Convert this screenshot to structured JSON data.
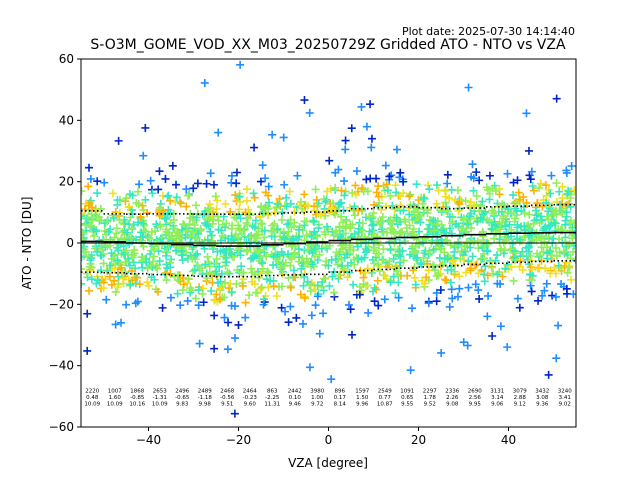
{
  "chart_data": {
    "type": "scatter",
    "title": "S-O3M_GOME_VOD_XX_M03_20250729Z Gridded ATO - NTO vs VZA",
    "subtitle": "Plot date: 2025-07-30 14:14:40",
    "xlabel": "VZA [degree]",
    "ylabel": "ATO - NTO [DU]",
    "xlim": [
      -55,
      55
    ],
    "ylim": [
      -60,
      60
    ],
    "xticks": [
      -40,
      -20,
      0,
      20,
      40
    ],
    "yticks": [
      -60,
      -40,
      -20,
      0,
      20,
      40,
      60
    ],
    "grid": false,
    "marker": "+",
    "colors": {
      "zero_line": "#000000",
      "point_palette": [
        "#90ee5a",
        "#33e8c2",
        "#f0e020",
        "#ffb000",
        "#1f8cff",
        "#0026c8"
      ]
    },
    "bins_x": [
      -52.5,
      -47.5,
      -42.5,
      -37.5,
      -32.5,
      -27.5,
      -22.5,
      -17.5,
      -12.5,
      -7.5,
      -2.5,
      2.5,
      7.5,
      12.5,
      17.5,
      22.5,
      27.5,
      32.5,
      37.5,
      42.5,
      47.5,
      52.5
    ],
    "series": [
      {
        "role": "mean",
        "style": "solid",
        "values": [
          0.5,
          0.4,
          0.0,
          -0.2,
          -0.5,
          -0.8,
          -1.0,
          -1.0,
          -0.6,
          -0.2,
          0.3,
          0.8,
          1.2,
          1.5,
          1.8,
          2.0,
          2.4,
          2.7,
          3.0,
          3.2,
          3.3,
          3.4
        ]
      },
      {
        "role": "mean+sd",
        "style": "dotted",
        "values": [
          10.5,
          9.5,
          9.4,
          9.5,
          9.5,
          9.4,
          9.4,
          9.4,
          9.6,
          9.8,
          10.1,
          10.5,
          11.2,
          11.5,
          11.8,
          11.5,
          11.2,
          11.4,
          11.8,
          12.0,
          12.3,
          12.5
        ]
      },
      {
        "role": "mean-sd",
        "style": "dotted",
        "values": [
          -9.5,
          -9.7,
          -10.0,
          -10.3,
          -10.6,
          -10.8,
          -11.0,
          -11.0,
          -10.6,
          -10.4,
          -10.2,
          -9.5,
          -9.0,
          -8.6,
          -8.2,
          -7.8,
          -7.4,
          -7.0,
          -6.6,
          -6.3,
          -6.0,
          -5.8
        ]
      }
    ],
    "stat_rows": [
      [
        "2220",
        "1007",
        "1868",
        "2653",
        "2496",
        "2489",
        "2468",
        "2464",
        "863",
        "2442",
        "3980",
        "896",
        "1597",
        "2549",
        "1091",
        "2297",
        "2336",
        "2690",
        "3131",
        "3079",
        "3432",
        "3240"
      ],
      [
        "0.48",
        "1.60",
        "-0.85",
        "-1.31",
        "-0.65",
        "-1.18",
        "-0.56",
        "-0.23",
        "-2.25",
        "0.10",
        "1.00",
        "0.17",
        "1.50",
        "0.77",
        "0.65",
        "1.78",
        "2.26",
        "2.56",
        "3.14",
        "2.88",
        "3.08",
        "3.41"
      ],
      [
        "10.09",
        "10.09",
        "10.16",
        "10.09",
        "9.83",
        "9.98",
        "9.51",
        "9.60",
        "11.31",
        "9.46",
        "9.72",
        "8.14",
        "9.96",
        "10.87",
        "9.55",
        "9.52",
        "9.08",
        "9.95",
        "9.06",
        "9.12",
        "9.36",
        "9.02"
      ]
    ]
  }
}
